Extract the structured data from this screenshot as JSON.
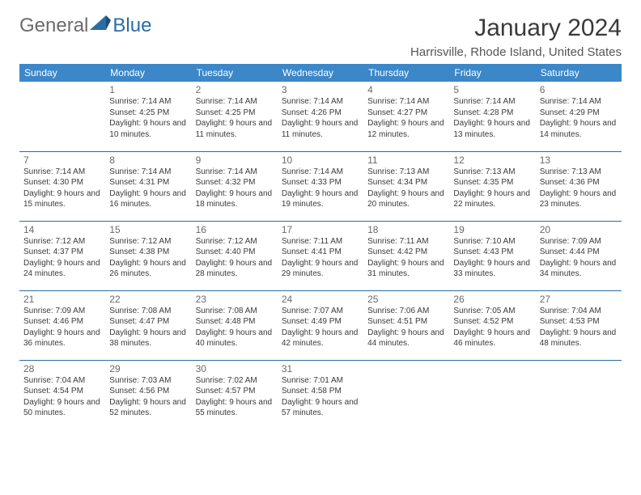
{
  "brand": {
    "general": "General",
    "blue": "Blue"
  },
  "title": "January 2024",
  "location": "Harrisville, Rhode Island, United States",
  "colors": {
    "header_bg": "#3b87c8",
    "header_text": "#ffffff",
    "rule": "#2a6ca8",
    "logo_gray": "#6b6b6b",
    "logo_blue": "#2a6ca8",
    "text": "#3a3a3a",
    "daynum": "#6a6a6a",
    "bg": "#ffffff"
  },
  "typography": {
    "title_size_pt": 22,
    "location_size_pt": 11,
    "header_size_pt": 9,
    "daynum_size_pt": 9,
    "info_size_pt": 7.5
  },
  "weekdays": [
    "Sunday",
    "Monday",
    "Tuesday",
    "Wednesday",
    "Thursday",
    "Friday",
    "Saturday"
  ],
  "weeks": [
    [
      null,
      {
        "n": "1",
        "sr": "7:14 AM",
        "ss": "4:25 PM",
        "dl": "9 hours and 10 minutes."
      },
      {
        "n": "2",
        "sr": "7:14 AM",
        "ss": "4:25 PM",
        "dl": "9 hours and 11 minutes."
      },
      {
        "n": "3",
        "sr": "7:14 AM",
        "ss": "4:26 PM",
        "dl": "9 hours and 11 minutes."
      },
      {
        "n": "4",
        "sr": "7:14 AM",
        "ss": "4:27 PM",
        "dl": "9 hours and 12 minutes."
      },
      {
        "n": "5",
        "sr": "7:14 AM",
        "ss": "4:28 PM",
        "dl": "9 hours and 13 minutes."
      },
      {
        "n": "6",
        "sr": "7:14 AM",
        "ss": "4:29 PM",
        "dl": "9 hours and 14 minutes."
      }
    ],
    [
      {
        "n": "7",
        "sr": "7:14 AM",
        "ss": "4:30 PM",
        "dl": "9 hours and 15 minutes."
      },
      {
        "n": "8",
        "sr": "7:14 AM",
        "ss": "4:31 PM",
        "dl": "9 hours and 16 minutes."
      },
      {
        "n": "9",
        "sr": "7:14 AM",
        "ss": "4:32 PM",
        "dl": "9 hours and 18 minutes."
      },
      {
        "n": "10",
        "sr": "7:14 AM",
        "ss": "4:33 PM",
        "dl": "9 hours and 19 minutes."
      },
      {
        "n": "11",
        "sr": "7:13 AM",
        "ss": "4:34 PM",
        "dl": "9 hours and 20 minutes."
      },
      {
        "n": "12",
        "sr": "7:13 AM",
        "ss": "4:35 PM",
        "dl": "9 hours and 22 minutes."
      },
      {
        "n": "13",
        "sr": "7:13 AM",
        "ss": "4:36 PM",
        "dl": "9 hours and 23 minutes."
      }
    ],
    [
      {
        "n": "14",
        "sr": "7:12 AM",
        "ss": "4:37 PM",
        "dl": "9 hours and 24 minutes."
      },
      {
        "n": "15",
        "sr": "7:12 AM",
        "ss": "4:38 PM",
        "dl": "9 hours and 26 minutes."
      },
      {
        "n": "16",
        "sr": "7:12 AM",
        "ss": "4:40 PM",
        "dl": "9 hours and 28 minutes."
      },
      {
        "n": "17",
        "sr": "7:11 AM",
        "ss": "4:41 PM",
        "dl": "9 hours and 29 minutes."
      },
      {
        "n": "18",
        "sr": "7:11 AM",
        "ss": "4:42 PM",
        "dl": "9 hours and 31 minutes."
      },
      {
        "n": "19",
        "sr": "7:10 AM",
        "ss": "4:43 PM",
        "dl": "9 hours and 33 minutes."
      },
      {
        "n": "20",
        "sr": "7:09 AM",
        "ss": "4:44 PM",
        "dl": "9 hours and 34 minutes."
      }
    ],
    [
      {
        "n": "21",
        "sr": "7:09 AM",
        "ss": "4:46 PM",
        "dl": "9 hours and 36 minutes."
      },
      {
        "n": "22",
        "sr": "7:08 AM",
        "ss": "4:47 PM",
        "dl": "9 hours and 38 minutes."
      },
      {
        "n": "23",
        "sr": "7:08 AM",
        "ss": "4:48 PM",
        "dl": "9 hours and 40 minutes."
      },
      {
        "n": "24",
        "sr": "7:07 AM",
        "ss": "4:49 PM",
        "dl": "9 hours and 42 minutes."
      },
      {
        "n": "25",
        "sr": "7:06 AM",
        "ss": "4:51 PM",
        "dl": "9 hours and 44 minutes."
      },
      {
        "n": "26",
        "sr": "7:05 AM",
        "ss": "4:52 PM",
        "dl": "9 hours and 46 minutes."
      },
      {
        "n": "27",
        "sr": "7:04 AM",
        "ss": "4:53 PM",
        "dl": "9 hours and 48 minutes."
      }
    ],
    [
      {
        "n": "28",
        "sr": "7:04 AM",
        "ss": "4:54 PM",
        "dl": "9 hours and 50 minutes."
      },
      {
        "n": "29",
        "sr": "7:03 AM",
        "ss": "4:56 PM",
        "dl": "9 hours and 52 minutes."
      },
      {
        "n": "30",
        "sr": "7:02 AM",
        "ss": "4:57 PM",
        "dl": "9 hours and 55 minutes."
      },
      {
        "n": "31",
        "sr": "7:01 AM",
        "ss": "4:58 PM",
        "dl": "9 hours and 57 minutes."
      },
      null,
      null,
      null
    ]
  ],
  "labels": {
    "sunrise": "Sunrise:",
    "sunset": "Sunset:",
    "daylight": "Daylight:"
  }
}
